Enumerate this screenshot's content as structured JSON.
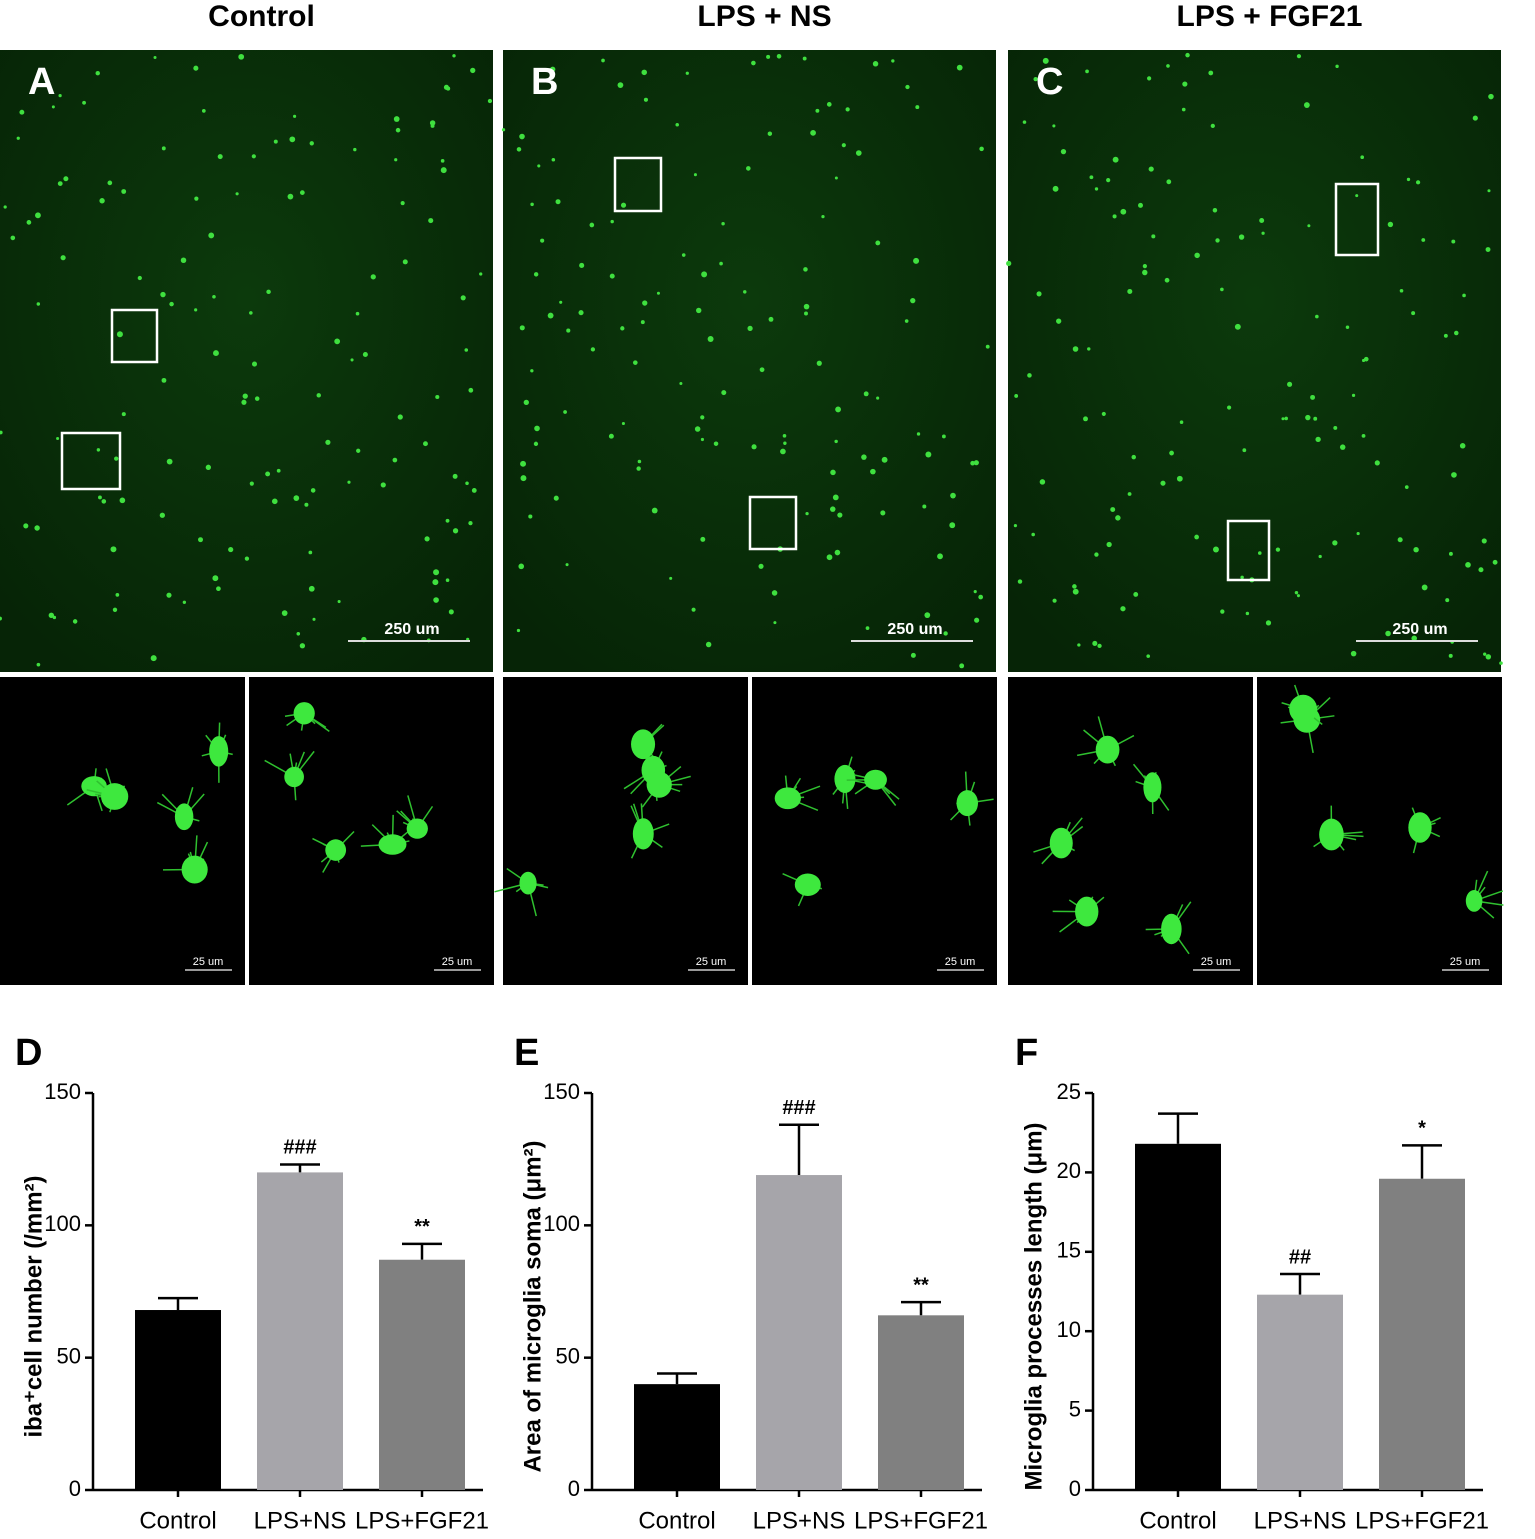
{
  "columns": [
    "Control",
    "LPS + NS",
    "LPS + FGF21"
  ],
  "panels": [
    {
      "label": "A",
      "scale": "250 um",
      "inset_scales": [
        "25 um",
        "25 um"
      ]
    },
    {
      "label": "B",
      "scale": "250 um",
      "inset_scales": [
        "25 um",
        "25 um"
      ]
    },
    {
      "label": "C",
      "scale": "250 um",
      "inset_scales": [
        "25 um",
        "25 um"
      ]
    }
  ],
  "chart_data": [
    {
      "type": "bar",
      "panel": "D",
      "y_label": "iba⁺cell number (/mm²)",
      "categories": [
        "Control",
        "LPS+NS",
        "LPS+FGF21"
      ],
      "values": [
        68,
        120,
        87
      ],
      "errors": [
        4.5,
        3,
        6
      ],
      "annotations": [
        null,
        "###",
        "**"
      ],
      "colors": [
        "#000000",
        "#a6a5aa",
        "#808080"
      ],
      "ylim": [
        0,
        150
      ],
      "yticks": [
        0,
        50,
        100,
        150
      ]
    },
    {
      "type": "bar",
      "panel": "E",
      "y_label": "Area of microglia soma (μm²)",
      "categories": [
        "Control",
        "LPS+NS",
        "LPS+FGF21"
      ],
      "values": [
        40,
        119,
        66
      ],
      "errors": [
        4,
        19,
        5
      ],
      "annotations": [
        null,
        "###",
        "**"
      ],
      "colors": [
        "#000000",
        "#a6a5aa",
        "#808080"
      ],
      "ylim": [
        0,
        150
      ],
      "yticks": [
        0,
        50,
        100,
        150
      ]
    },
    {
      "type": "bar",
      "panel": "F",
      "y_label": "Microglia processes length (μm)",
      "categories": [
        "Control",
        "LPS+NS",
        "LPS+FGF21"
      ],
      "values": [
        21.8,
        12.3,
        19.6
      ],
      "errors": [
        1.9,
        1.3,
        2.1
      ],
      "annotations": [
        null,
        "##",
        "*"
      ],
      "colors": [
        "#000000",
        "#a6a5aa",
        "#808080"
      ],
      "ylim": [
        0,
        25
      ],
      "yticks": [
        0,
        5,
        10,
        15,
        20,
        25
      ]
    }
  ]
}
